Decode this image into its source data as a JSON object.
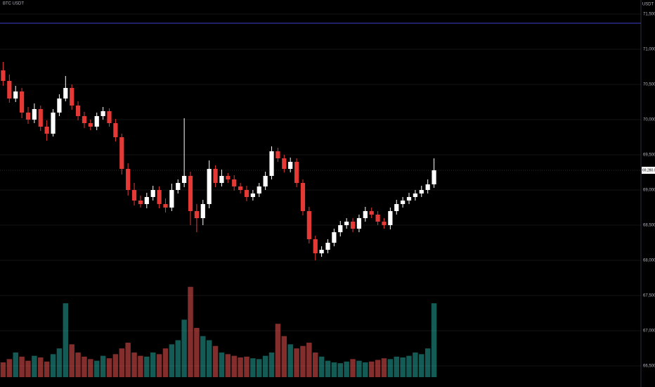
{
  "chart_data": {
    "type": "candlestick",
    "title": "BTC USDT",
    "unit": "USDT",
    "up_color": "#ffffff",
    "down_color": "#e53935",
    "volume_up_color": "#26a69a",
    "volume_down_color": "#ef5350",
    "grid": true,
    "ylim": [
      66200,
      71700
    ],
    "yticks": [
      {
        "value": 66500,
        "label": "66,500.0"
      },
      {
        "value": 67000,
        "label": "67,000.0"
      },
      {
        "value": 67500,
        "label": "67,500.0"
      },
      {
        "value": 68000,
        "label": "68,000.0"
      },
      {
        "value": 68500,
        "label": "68,500.0"
      },
      {
        "value": 69000,
        "label": "69,000.0"
      },
      {
        "value": 69500,
        "label": "69,500.0"
      },
      {
        "value": 70000,
        "label": "70,000.0"
      },
      {
        "value": 70500,
        "label": "70,500.0"
      },
      {
        "value": 71000,
        "label": "71,000.0"
      },
      {
        "value": 71500,
        "label": "71,500.0"
      }
    ],
    "hline": {
      "value": 71370,
      "color": "#3f3fd1"
    },
    "last_price": {
      "value": 69280,
      "label": "69,280.0"
    },
    "open": [
      70700,
      70550,
      70300,
      70400,
      70100,
      70000,
      70150,
      69900,
      69800,
      70100,
      70300,
      70450,
      70200,
      70050,
      69950,
      69900,
      70050,
      70120,
      69950,
      69750,
      69300,
      69000,
      68850,
      68800,
      68900,
      69000,
      68800,
      68750,
      69000,
      69100,
      69200,
      68700,
      68600,
      68800,
      69300,
      69100,
      69200,
      69150,
      69050,
      69000,
      68900,
      68950,
      69050,
      69200,
      69550,
      69450,
      69300,
      69400,
      69100,
      68700,
      68300,
      68100,
      68150,
      68250,
      68400,
      68500,
      68550,
      68450,
      68600,
      68700,
      68650,
      68550,
      68500,
      68700,
      68800,
      68850,
      68900,
      68950,
      69000,
      69080
    ],
    "high": [
      70820,
      70640,
      70480,
      70450,
      70180,
      70230,
      70200,
      69990,
      70150,
      70360,
      70620,
      70500,
      70260,
      70110,
      70000,
      70100,
      70180,
      70160,
      70010,
      69800,
      69380,
      69100,
      68920,
      68960,
      69060,
      69050,
      68880,
      69090,
      69150,
      70020,
      69260,
      68800,
      68860,
      69420,
      69350,
      69290,
      69240,
      69210,
      69100,
      69060,
      69000,
      69100,
      69260,
      69620,
      69600,
      69500,
      69460,
      69450,
      69150,
      68760,
      68350,
      68200,
      68300,
      68450,
      68560,
      68600,
      68600,
      68650,
      68760,
      68750,
      68700,
      68600,
      68750,
      68860,
      68900,
      68960,
      69000,
      69060,
      69150,
      69450
    ],
    "low": [
      70480,
      70240,
      70250,
      70020,
      69940,
      69950,
      69840,
      69700,
      69760,
      70050,
      70260,
      70140,
      69990,
      69880,
      69850,
      69850,
      70000,
      69900,
      69690,
      69220,
      68920,
      68780,
      68750,
      68740,
      68850,
      68740,
      68680,
      68700,
      68950,
      69040,
      68500,
      68400,
      68500,
      68740,
      69040,
      69050,
      69100,
      68990,
      68950,
      68840,
      68850,
      68900,
      69000,
      69150,
      69400,
      69250,
      69250,
      69040,
      68640,
      68240,
      68000,
      68050,
      68100,
      68200,
      68340,
      68450,
      68400,
      68400,
      68550,
      68600,
      68500,
      68450,
      68440,
      68650,
      68750,
      68800,
      68850,
      68900,
      68950,
      69030
    ],
    "close": [
      70550,
      70300,
      70400,
      70100,
      70000,
      70150,
      69900,
      69800,
      70100,
      70300,
      70450,
      70200,
      70050,
      69950,
      69900,
      70050,
      70120,
      69950,
      69750,
      69300,
      69000,
      68850,
      68800,
      68900,
      69000,
      68800,
      68750,
      69000,
      69100,
      69200,
      68700,
      68600,
      68800,
      69300,
      69100,
      69200,
      69150,
      69050,
      69000,
      68900,
      68950,
      69050,
      69200,
      69550,
      69450,
      69300,
      69400,
      69100,
      68700,
      68300,
      68100,
      68150,
      68250,
      68400,
      68500,
      68550,
      68450,
      68600,
      68700,
      68650,
      68550,
      68500,
      68700,
      68800,
      68850,
      68900,
      68950,
      69000,
      69080,
      69280
    ],
    "volume": [
      180,
      220,
      300,
      250,
      200,
      260,
      240,
      190,
      280,
      350,
      900,
      400,
      300,
      250,
      220,
      200,
      260,
      230,
      280,
      350,
      420,
      300,
      260,
      250,
      300,
      280,
      350,
      400,
      450,
      700,
      1100,
      600,
      500,
      450,
      380,
      300,
      280,
      260,
      240,
      250,
      230,
      220,
      260,
      300,
      650,
      500,
      400,
      350,
      380,
      420,
      300,
      250,
      200,
      180,
      170,
      190,
      220,
      200,
      180,
      190,
      210,
      230,
      220,
      250,
      240,
      260,
      300,
      280,
      350,
      900
    ],
    "volume_ylim": [
      0,
      1200
    ]
  }
}
